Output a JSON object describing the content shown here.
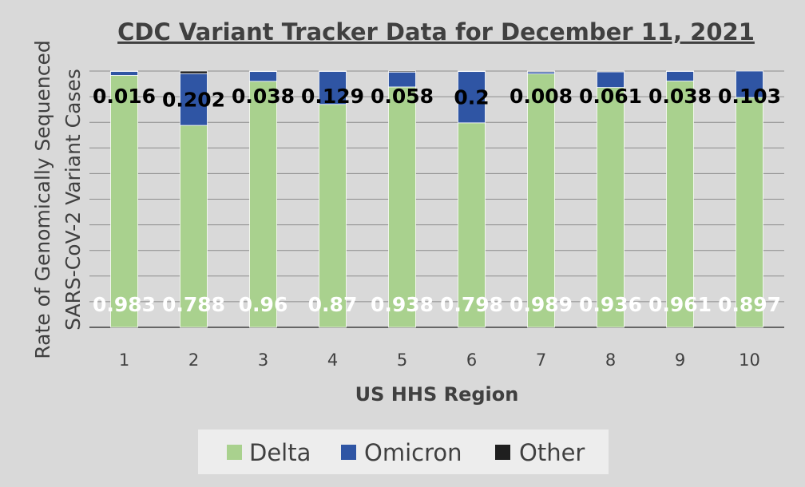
{
  "chart_data": {
    "type": "bar",
    "stacked": true,
    "title": "CDC Variant Tracker Data for December 11, 2021",
    "xlabel": "US HHS Region",
    "ylabel_lines": [
      "Rate of Genomically Sequenced",
      "SARS-CoV-2 Variant Cases"
    ],
    "categories": [
      "1",
      "2",
      "3",
      "4",
      "5",
      "6",
      "7",
      "8",
      "9",
      "10"
    ],
    "ylim": [
      0,
      1
    ],
    "grid": true,
    "legend_position": "bottom",
    "series": [
      {
        "name": "Delta",
        "color": "#a9d18e",
        "values": [
          0.983,
          0.788,
          0.96,
          0.87,
          0.938,
          0.798,
          0.989,
          0.936,
          0.961,
          0.897
        ],
        "labels": [
          "0.983",
          "0.788",
          "0.96",
          "0.87",
          "0.938",
          "0.798",
          "0.989",
          "0.936",
          "0.961",
          "0.897"
        ]
      },
      {
        "name": "Omicron",
        "color": "#2f55a4",
        "values": [
          0.016,
          0.202,
          0.038,
          0.129,
          0.058,
          0.2,
          0.008,
          0.061,
          0.038,
          0.103
        ],
        "labels": [
          "0.016",
          "0.202",
          "0.038",
          "0.129",
          "0.058",
          "0.2",
          "0.008",
          "0.061",
          "0.038",
          "0.103"
        ]
      },
      {
        "name": "Other",
        "color": "#1f1f1f",
        "values": [
          0.001,
          0.01,
          0.002,
          0.001,
          0.004,
          0.002,
          0.003,
          0.003,
          0.001,
          0.0
        ],
        "labels": []
      }
    ]
  }
}
